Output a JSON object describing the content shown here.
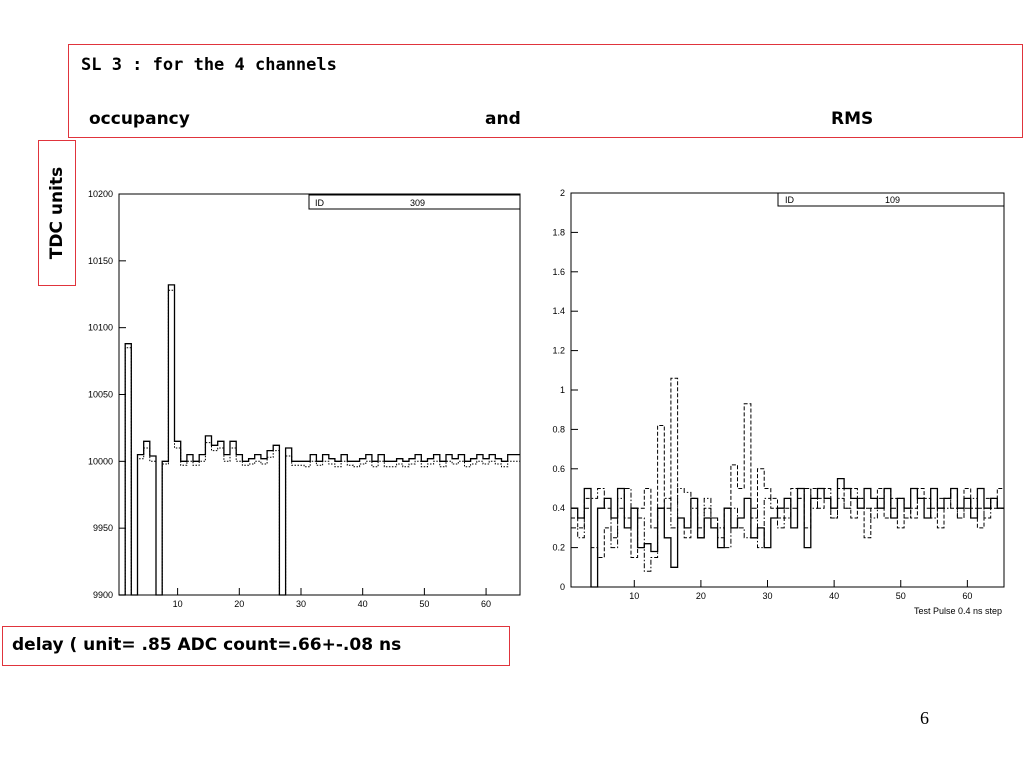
{
  "header": {
    "line1": "SL 3 : for the 4 channels",
    "word_occupancy": "occupancy",
    "word_and": "and",
    "word_rms": "RMS"
  },
  "y_unit_label": "TDC units",
  "footer": "delay ( unit= .85 ADC count=.66+-.08 ns",
  "page_number": "6",
  "colors": {
    "box_border": "#e0343c"
  },
  "chart_data": [
    {
      "type": "step",
      "id_label": "ID",
      "id_value": "309",
      "xlim": [
        0.5,
        65.5
      ],
      "ylim": [
        9900,
        10200
      ],
      "x_ticks": [
        10,
        20,
        30,
        40,
        50,
        60
      ],
      "y_ticks": [
        9900,
        9950,
        10000,
        10050,
        10100,
        10150,
        10200
      ],
      "y_tick_labels": [
        "9900",
        "9950",
        "10000",
        "10050",
        "10100",
        "10150",
        "10200"
      ],
      "caption": "",
      "series": [
        {
          "style": "solid",
          "values": [
            9900,
            10088,
            9900,
            10005,
            10015,
            10004,
            9900,
            10000,
            10132,
            10015,
            10000,
            10005,
            10000,
            10005,
            10019,
            10012,
            10015,
            10005,
            10015,
            10005,
            10000,
            10002,
            10005,
            10002,
            10008,
            10012,
            9900,
            10010,
            10000,
            10000,
            10000,
            10005,
            10000,
            10005,
            10002,
            10000,
            10005,
            10000,
            10000,
            10002,
            10005,
            10000,
            10005,
            10000,
            10000,
            10002,
            10000,
            10002,
            10005,
            10000,
            10002,
            10005,
            10000,
            10005,
            10002,
            10005,
            10000,
            10002,
            10005,
            10002,
            10005,
            10002,
            10000,
            10005,
            10005
          ]
        },
        {
          "style": "dotted",
          "values": [
            9900,
            10085,
            9900,
            10002,
            10010,
            10000,
            9900,
            9998,
            10128,
            10010,
            9997,
            10000,
            9997,
            10000,
            10014,
            10008,
            10010,
            10000,
            10010,
            10000,
            9997,
            9998,
            10000,
            9998,
            10003,
            10008,
            9900,
            10004,
            9997,
            9997,
            9996,
            10000,
            9997,
            10000,
            9998,
            9996,
            10000,
            9997,
            9996,
            9998,
            10000,
            9996,
            10000,
            9996,
            9996,
            9998,
            9996,
            9998,
            10000,
            9996,
            9998,
            10000,
            9996,
            10000,
            9998,
            10000,
            9996,
            9998,
            10000,
            9998,
            10000,
            9998,
            9996,
            10000,
            10000
          ]
        }
      ]
    },
    {
      "type": "step",
      "id_label": "ID",
      "id_value": "109",
      "xlim": [
        0.5,
        65.5
      ],
      "ylim": [
        0,
        2
      ],
      "x_ticks": [
        10,
        20,
        30,
        40,
        50,
        60
      ],
      "y_ticks": [
        0,
        0.2,
        0.4,
        0.6,
        0.8,
        1,
        1.2,
        1.4,
        1.6,
        1.8,
        2
      ],
      "y_tick_labels": [
        "0",
        "0.2",
        "0.4",
        "0.6",
        "0.8",
        "1",
        "1.2",
        "1.4",
        "1.6",
        "1.8",
        "2"
      ],
      "caption": "Test Pulse  0.4 ns step",
      "series": [
        {
          "style": "solid",
          "values": [
            0.4,
            0.35,
            0.5,
            0.0,
            0.4,
            0.45,
            0.35,
            0.5,
            0.3,
            0.4,
            0.2,
            0.22,
            0.18,
            0.4,
            0.25,
            0.1,
            0.35,
            0.3,
            0.45,
            0.25,
            0.35,
            0.3,
            0.2,
            0.4,
            0.3,
            0.35,
            0.45,
            0.25,
            0.3,
            0.2,
            0.35,
            0.4,
            0.45,
            0.3,
            0.5,
            0.2,
            0.45,
            0.5,
            0.45,
            0.4,
            0.55,
            0.5,
            0.45,
            0.4,
            0.5,
            0.45,
            0.4,
            0.5,
            0.35,
            0.45,
            0.4,
            0.5,
            0.45,
            0.35,
            0.5,
            0.4,
            0.45,
            0.5,
            0.4,
            0.45,
            0.35,
            0.5,
            0.4,
            0.45,
            0.4
          ]
        },
        {
          "style": "dashed",
          "values": [
            0.35,
            0.3,
            0.45,
            0.2,
            0.15,
            0.3,
            0.25,
            0.4,
            0.35,
            0.15,
            0.4,
            0.5,
            0.3,
            0.82,
            0.4,
            1.06,
            0.35,
            0.25,
            0.45,
            0.3,
            0.4,
            0.35,
            0.25,
            0.4,
            0.62,
            0.5,
            0.93,
            0.35,
            0.6,
            0.5,
            0.45,
            0.35,
            0.4,
            0.5,
            0.45,
            0.3,
            0.5,
            0.4,
            0.45,
            0.35,
            0.5,
            0.4,
            0.35,
            0.45,
            0.25,
            0.4,
            0.5,
            0.35,
            0.45,
            0.3,
            0.4,
            0.35,
            0.5,
            0.45,
            0.4,
            0.3,
            0.45,
            0.4,
            0.35,
            0.5,
            0.4,
            0.3,
            0.45,
            0.4,
            0.5
          ]
        },
        {
          "style": "dashdot",
          "values": [
            0.3,
            0.25,
            0.4,
            0.45,
            0.5,
            0.4,
            0.2,
            0.45,
            0.5,
            0.4,
            0.35,
            0.08,
            0.15,
            0.4,
            0.45,
            0.3,
            0.5,
            0.48,
            0.4,
            0.25,
            0.45,
            0.35,
            0.3,
            0.2,
            0.4,
            0.3,
            0.25,
            0.4,
            0.2,
            0.45,
            0.4,
            0.3,
            0.35,
            0.4,
            0.45,
            0.5,
            0.4,
            0.45,
            0.5,
            0.35,
            0.45,
            0.4,
            0.5,
            0.45,
            0.4,
            0.35,
            0.45,
            0.5,
            0.4,
            0.45,
            0.35,
            0.4,
            0.45,
            0.4,
            0.35,
            0.45,
            0.4,
            0.5,
            0.35,
            0.4,
            0.45,
            0.4,
            0.35,
            0.45,
            0.4
          ]
        }
      ]
    }
  ]
}
